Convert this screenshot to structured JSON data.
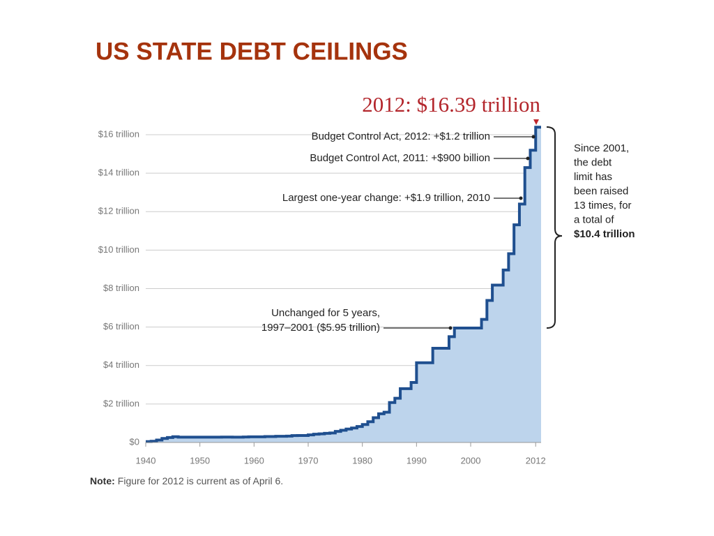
{
  "chart_data": {
    "type": "step",
    "title": "US STATE DEBT CEILINGS",
    "headline": "2012: $16.39 trillion",
    "x": [
      1940,
      1941,
      1942,
      1943,
      1944,
      1945,
      1946,
      1954,
      1956,
      1958,
      1959,
      1962,
      1964,
      1966,
      1967,
      1968,
      1970,
      1971,
      1972,
      1973,
      1974,
      1975,
      1976,
      1977,
      1978,
      1979,
      1980,
      1981,
      1982,
      1983,
      1984,
      1985,
      1986,
      1987,
      1989,
      1990,
      1993,
      1996,
      1997,
      2002,
      2003,
      2004,
      2006,
      2007,
      2008,
      2009,
      2010,
      2011,
      2012
    ],
    "values": [
      0.045,
      0.065,
      0.125,
      0.21,
      0.26,
      0.3,
      0.275,
      0.281,
      0.278,
      0.288,
      0.295,
      0.308,
      0.324,
      0.33,
      0.358,
      0.365,
      0.395,
      0.43,
      0.45,
      0.475,
      0.495,
      0.577,
      0.636,
      0.7,
      0.752,
      0.83,
      0.935,
      1.079,
      1.29,
      1.49,
      1.573,
      2.079,
      2.3,
      2.8,
      3.12,
      4.145,
      4.9,
      5.5,
      5.95,
      6.4,
      7.384,
      8.184,
      8.965,
      9.815,
      11.315,
      12.394,
      14.294,
      15.194,
      16.394
    ],
    "color": "#1f4f8f",
    "fill": "#bdd4ec",
    "xlim": [
      1940,
      2013
    ],
    "xticks": [
      1940,
      1950,
      1960,
      1970,
      1980,
      1990,
      2000,
      2012
    ],
    "ylim": [
      0,
      17
    ],
    "yticks": [
      {
        "value": 0,
        "label": "$0"
      },
      {
        "value": 2,
        "label": "$2 trillion"
      },
      {
        "value": 4,
        "label": "$4 trillion"
      },
      {
        "value": 6,
        "label": "$6 trillion"
      },
      {
        "value": 8,
        "label": "$8 trillion"
      },
      {
        "value": 10,
        "label": "$10 trillion"
      },
      {
        "value": 12,
        "label": "$12 trillion"
      },
      {
        "value": 14,
        "label": "$14 trillion"
      },
      {
        "value": 16,
        "label": "$16 trillion"
      }
    ],
    "grid": true,
    "annotations": [
      {
        "lines": [
          "Budget Control Act, 2012: +$1.2 trillion"
        ]
      },
      {
        "lines": [
          "Budget Control Act, 2011: +$900 billion"
        ]
      },
      {
        "lines": [
          "Largest one-year change: +$1.9 trillion, 2010"
        ]
      },
      {
        "lines": [
          "Unchanged for 5 years,",
          "1997–2001 ($5.95 trillion)"
        ]
      }
    ],
    "brace_note": {
      "lines": [
        "Since 2001,",
        "the debt",
        "limit has",
        "been raised",
        "13 times, for",
        "a total of"
      ],
      "total": "$10.4 trillion"
    },
    "footnote": {
      "label": "Note:",
      "text": "Figure for 2012 is current as of April 6."
    }
  }
}
